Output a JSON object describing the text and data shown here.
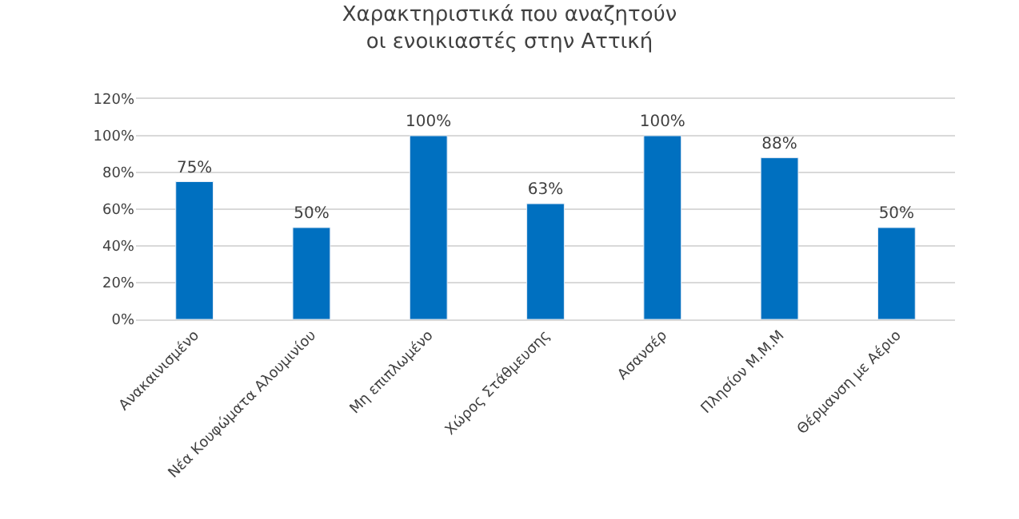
{
  "chart_data": {
    "type": "bar",
    "title": "Χαρακτηριστικά που αναζητούν\nοι ενοικιαστές στην Αττική",
    "categories": [
      "Ανακαινισμένο",
      "Νέα Κουφώματα Αλουμινίου",
      "Μη επιπλωμένο",
      "Χώρος Στάθμευσης",
      "Ασανσέρ",
      "Πλησίον Μ.Μ.Μ",
      "Θέρμανση με Αέριο"
    ],
    "values": [
      75,
      50,
      100,
      63,
      100,
      88,
      50
    ],
    "value_labels": [
      "75%",
      "50%",
      "100%",
      "63%",
      "100%",
      "88%",
      "50%"
    ],
    "color": "#0070c0",
    "ylim": [
      0,
      120
    ],
    "yticks": [
      {
        "value": 0,
        "label": "0%"
      },
      {
        "value": 20,
        "label": "20%"
      },
      {
        "value": 40,
        "label": "40%"
      },
      {
        "value": 60,
        "label": "60%"
      },
      {
        "value": 80,
        "label": "80%"
      },
      {
        "value": 100,
        "label": "100%"
      },
      {
        "value": 120,
        "label": "120%"
      }
    ],
    "grid": "y"
  }
}
